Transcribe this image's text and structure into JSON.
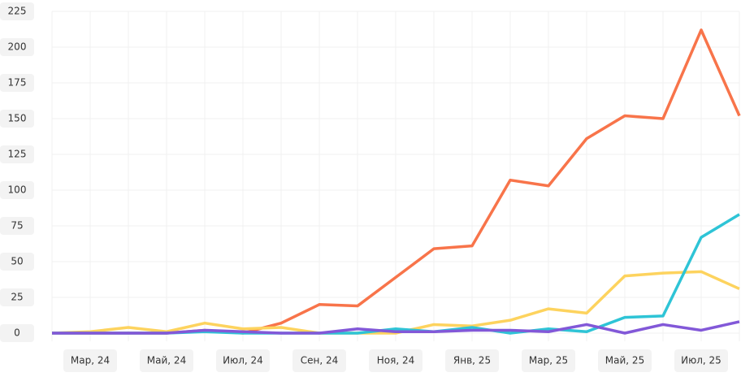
{
  "chart_data": {
    "type": "line",
    "categories": [
      null,
      "Мар, 24",
      null,
      "Май, 24",
      null,
      "Июл, 24",
      null,
      "Сен, 24",
      null,
      "Ноя, 24",
      null,
      "Янв, 25",
      null,
      "Мар, 25",
      null,
      "Май, 25",
      null,
      "Июл, 25",
      null
    ],
    "series": [
      {
        "color": "#f8744a",
        "values": [
          0,
          0,
          0,
          0,
          2,
          0,
          7,
          20,
          19,
          39,
          59,
          61,
          107,
          103,
          136,
          152,
          150,
          212,
          152
        ]
      },
      {
        "color": "#fdd35e",
        "values": [
          0,
          1,
          4,
          1,
          7,
          3,
          4,
          0,
          0,
          0,
          6,
          5,
          9,
          17,
          14,
          40,
          42,
          43,
          31
        ]
      },
      {
        "color": "#2ec4d6",
        "values": [
          0,
          0,
          0,
          0,
          1,
          0,
          0,
          0,
          0,
          3,
          1,
          4,
          0,
          3,
          1,
          11,
          12,
          67,
          83
        ]
      },
      {
        "color": "#8258d8",
        "values": [
          0,
          0,
          0,
          0,
          2,
          1,
          0,
          0,
          3,
          1,
          1,
          2,
          2,
          1,
          6,
          0,
          6,
          2,
          8
        ]
      }
    ],
    "ylim": [
      0,
      225
    ],
    "yticks": [
      0,
      25,
      50,
      75,
      100,
      125,
      150,
      175,
      200,
      225
    ],
    "grid": true
  }
}
